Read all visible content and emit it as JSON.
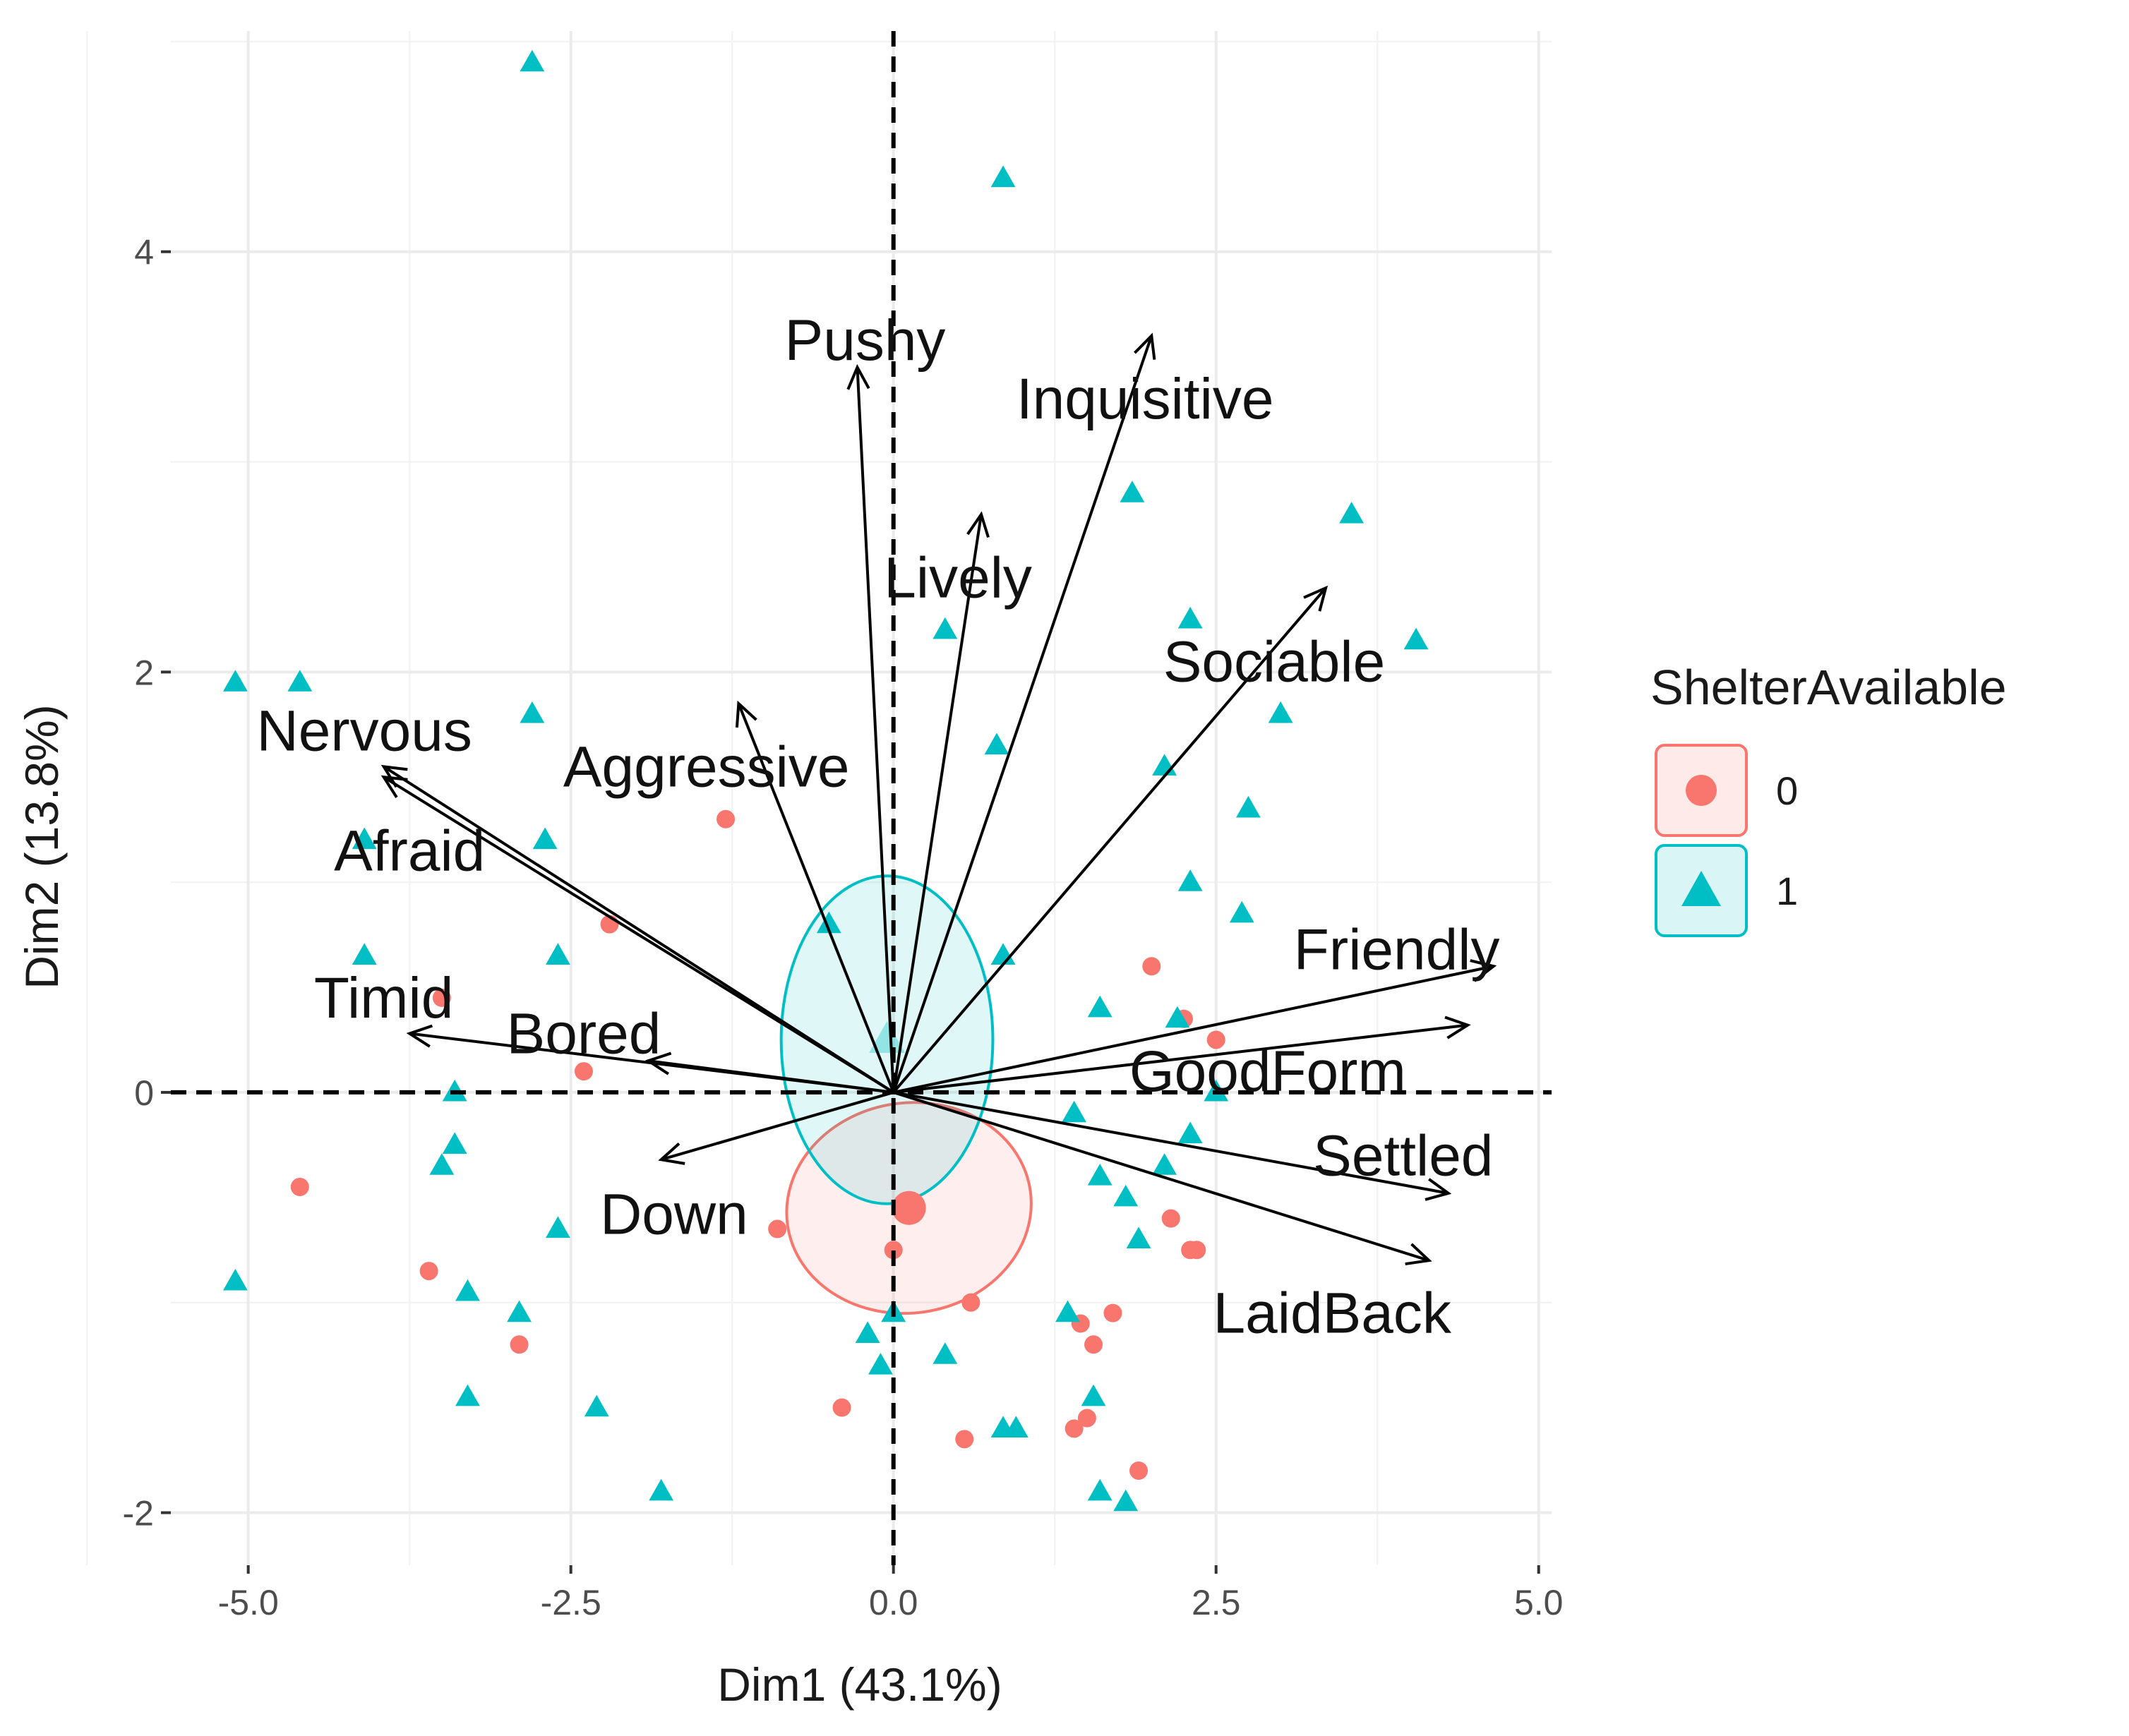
{
  "chart_data": {
    "type": "scatter",
    "subtype": "pca-biplot",
    "xlabel": "Dim1 (43.1%)",
    "ylabel": "Dim2 (13.8%)",
    "xlim": [
      -5.6,
      5.1
    ],
    "ylim": [
      -2.25,
      5.05
    ],
    "x_ticks": [
      -5.0,
      -2.5,
      0.0,
      2.5,
      5.0
    ],
    "x_tick_labels": [
      "-5.0",
      "-2.5",
      "0.0",
      "2.5",
      "5.0"
    ],
    "y_ticks": [
      -2,
      0,
      2,
      4
    ],
    "y_tick_labels": [
      "-2",
      "0",
      "2",
      "4"
    ],
    "grid": true,
    "reference_lines": {
      "x": 0,
      "y": 0,
      "style": "dashed"
    },
    "legend": {
      "title": "ShelterAvailable",
      "position": "right",
      "entries": [
        {
          "label": "0",
          "shape": "circle",
          "color": "#F8766D"
        },
        {
          "label": "1",
          "shape": "triangle",
          "color": "#00BFC4"
        }
      ]
    },
    "series": [
      {
        "name": "0",
        "shape": "circle",
        "color": "#F8766D",
        "points": [
          [
            -4.6,
            -0.45
          ],
          [
            -3.6,
            -0.85
          ],
          [
            -2.9,
            -1.2
          ],
          [
            -2.4,
            0.1
          ],
          [
            -2.2,
            0.8
          ],
          [
            -1.3,
            1.3
          ],
          [
            -0.9,
            -0.65
          ],
          [
            -0.4,
            -1.5
          ],
          [
            0.0,
            -0.75
          ],
          [
            0.6,
            -1.0
          ],
          [
            0.55,
            -1.65
          ],
          [
            1.45,
            -1.1
          ],
          [
            1.55,
            -1.2
          ],
          [
            1.7,
            -1.05
          ],
          [
            1.4,
            -1.6
          ],
          [
            1.5,
            -1.55
          ],
          [
            1.9,
            -1.8
          ],
          [
            2.0,
            0.6
          ],
          [
            2.15,
            -0.6
          ],
          [
            2.25,
            0.35
          ],
          [
            2.3,
            -0.75
          ],
          [
            2.35,
            -0.75
          ],
          [
            2.5,
            0.25
          ],
          [
            -3.5,
            0.45
          ]
        ]
      },
      {
        "name": "1",
        "shape": "triangle",
        "color": "#00BFC4",
        "points": [
          [
            -2.8,
            4.9
          ],
          [
            0.85,
            4.35
          ],
          [
            -5.1,
            1.95
          ],
          [
            -4.6,
            1.95
          ],
          [
            -2.8,
            1.8
          ],
          [
            -4.1,
            1.2
          ],
          [
            -2.7,
            1.2
          ],
          [
            -4.1,
            0.65
          ],
          [
            -2.6,
            0.65
          ],
          [
            -3.4,
            0.0
          ],
          [
            -3.4,
            -0.25
          ],
          [
            -3.5,
            -0.35
          ],
          [
            -2.6,
            -0.65
          ],
          [
            -5.1,
            -0.9
          ],
          [
            -3.3,
            -0.95
          ],
          [
            -2.9,
            -1.05
          ],
          [
            -3.3,
            -1.45
          ],
          [
            -2.3,
            -1.5
          ],
          [
            -1.8,
            -1.9
          ],
          [
            -0.2,
            -1.15
          ],
          [
            0.0,
            -1.05
          ],
          [
            -0.1,
            -1.3
          ],
          [
            0.4,
            -1.25
          ],
          [
            0.85,
            -1.6
          ],
          [
            0.95,
            -1.6
          ],
          [
            1.35,
            -1.05
          ],
          [
            1.55,
            -1.45
          ],
          [
            1.6,
            -1.9
          ],
          [
            1.8,
            -1.95
          ],
          [
            1.85,
            2.85
          ],
          [
            2.3,
            2.25
          ],
          [
            3.55,
            2.75
          ],
          [
            4.05,
            2.15
          ],
          [
            3.0,
            1.8
          ],
          [
            2.1,
            1.55
          ],
          [
            2.75,
            1.35
          ],
          [
            2.3,
            1.0
          ],
          [
            2.7,
            0.85
          ],
          [
            0.4,
            2.2
          ],
          [
            0.8,
            1.65
          ],
          [
            0.85,
            0.65
          ],
          [
            -0.5,
            0.8
          ],
          [
            1.6,
            0.4
          ],
          [
            2.2,
            0.35
          ],
          [
            2.5,
            0.0
          ],
          [
            2.3,
            -0.2
          ],
          [
            1.4,
            -0.1
          ],
          [
            1.6,
            -0.4
          ],
          [
            1.8,
            -0.5
          ],
          [
            2.1,
            -0.35
          ],
          [
            1.9,
            -0.7
          ]
        ]
      }
    ],
    "group_means": [
      {
        "group": "0",
        "x": 0.12,
        "y": -0.55
      },
      {
        "group": "1",
        "x": -0.05,
        "y": 0.25
      }
    ],
    "confidence_ellipses": [
      {
        "group": "0",
        "center": [
          0.12,
          -0.55
        ],
        "rx": 0.95,
        "ry": 0.5,
        "rotation_deg": -8
      },
      {
        "group": "1",
        "center": [
          -0.05,
          0.25
        ],
        "rx": 0.82,
        "ry": 0.78,
        "rotation_deg": 0
      }
    ],
    "variables": [
      {
        "name": "Pushy",
        "x": -0.28,
        "y": 3.45,
        "label_x": -0.22,
        "label_y": 3.58
      },
      {
        "name": "Inquisitive",
        "x": 2.0,
        "y": 3.6,
        "label_x": 1.95,
        "label_y": 3.3
      },
      {
        "name": "Lively",
        "x": 0.68,
        "y": 2.75,
        "label_x": 0.5,
        "label_y": 2.45
      },
      {
        "name": "Sociable",
        "x": 3.35,
        "y": 2.4,
        "label_x": 2.95,
        "label_y": 2.05
      },
      {
        "name": "Aggressive",
        "x": -1.2,
        "y": 1.85,
        "label_x": -1.45,
        "label_y": 1.55
      },
      {
        "name": "Nervous",
        "x": -3.95,
        "y": 1.55,
        "label_x": -4.1,
        "label_y": 1.72
      },
      {
        "name": "Afraid",
        "x": -3.95,
        "y": 1.5,
        "label_x": -3.75,
        "label_y": 1.15
      },
      {
        "name": "Timid",
        "x": -3.75,
        "y": 0.28,
        "label_x": -3.95,
        "label_y": 0.45
      },
      {
        "name": "Bored",
        "x": -1.9,
        "y": 0.15,
        "label_x": -2.4,
        "label_y": 0.28
      },
      {
        "name": "Down",
        "x": -1.8,
        "y": -0.32,
        "label_x": -1.7,
        "label_y": -0.58
      },
      {
        "name": "Friendly",
        "x": 4.65,
        "y": 0.6,
        "label_x": 3.9,
        "label_y": 0.68
      },
      {
        "name": "GoodForm",
        "x": 4.45,
        "y": 0.32,
        "label_x": 2.9,
        "label_y": 0.1
      },
      {
        "name": "Settled",
        "x": 4.3,
        "y": -0.48,
        "label_x": 3.95,
        "label_y": -0.3
      },
      {
        "name": "LaidBack",
        "x": 4.15,
        "y": -0.8,
        "label_x": 3.4,
        "label_y": -1.05
      }
    ]
  }
}
